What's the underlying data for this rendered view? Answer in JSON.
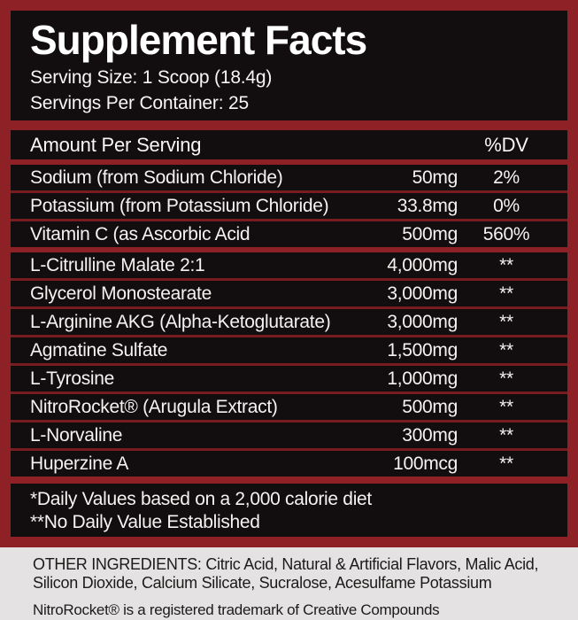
{
  "colors": {
    "accent_red": "#8e2125",
    "separator_red": "#771d20",
    "panel_black": "#120d0e",
    "footer_gray": "#e4e2e2",
    "text_white": "#ffffff",
    "text_dark": "#1d1a1a"
  },
  "header": {
    "title": "Supplement Facts",
    "serving_size": "Serving Size: 1 Scoop (18.4g)",
    "servings_per_container": "Servings Per Container: 25"
  },
  "table": {
    "amount_header": "Amount Per Serving",
    "dv_header": "%DV",
    "rows": [
      {
        "name": "Sodium (from Sodium Chloride)",
        "amount": "50mg",
        "dv": "2%",
        "group": 1
      },
      {
        "name": "Potassium (from Potassium Chloride)",
        "amount": "33.8mg",
        "dv": "0%",
        "group": 1
      },
      {
        "name": "Vitamin C (as Ascorbic Acid",
        "amount": "500mg",
        "dv": "560%",
        "group": 1
      },
      {
        "name": "L-Citrulline Malate 2:1",
        "amount": "4,000mg",
        "dv": "**",
        "group": 2
      },
      {
        "name": "Glycerol Monostearate",
        "amount": "3,000mg",
        "dv": "**",
        "group": 2
      },
      {
        "name": "L-Arginine AKG (Alpha-Ketoglutarate)",
        "amount": "3,000mg",
        "dv": "**",
        "group": 2
      },
      {
        "name": "Agmatine Sulfate",
        "amount": "1,500mg",
        "dv": "**",
        "group": 2
      },
      {
        "name": "L-Tyrosine",
        "amount": "1,000mg",
        "dv": "**",
        "group": 2
      },
      {
        "name": "NitroRocket® (Arugula Extract)",
        "amount": "500mg",
        "dv": "**",
        "group": 2
      },
      {
        "name": "L-Norvaline",
        "amount": "300mg",
        "dv": "**",
        "group": 2
      },
      {
        "name": "Huperzine A",
        "amount": "100mcg",
        "dv": "**",
        "group": 2
      }
    ]
  },
  "footnotes": {
    "line1": "*Daily Values based on a 2,000 calorie diet",
    "line2": "**No Daily Value Established"
  },
  "footer": {
    "other_ingredients_line1": "OTHER INGREDIENTS: Citric Acid, Natural & Artificial Flavors,  Malic Acid,",
    "other_ingredients_line2": "Silicon Dioxide, Calcium Silicate, Sucralose, Acesulfame Potassium",
    "trademark": "NitroRocket® is a registered trademark of Creative Compounds"
  }
}
